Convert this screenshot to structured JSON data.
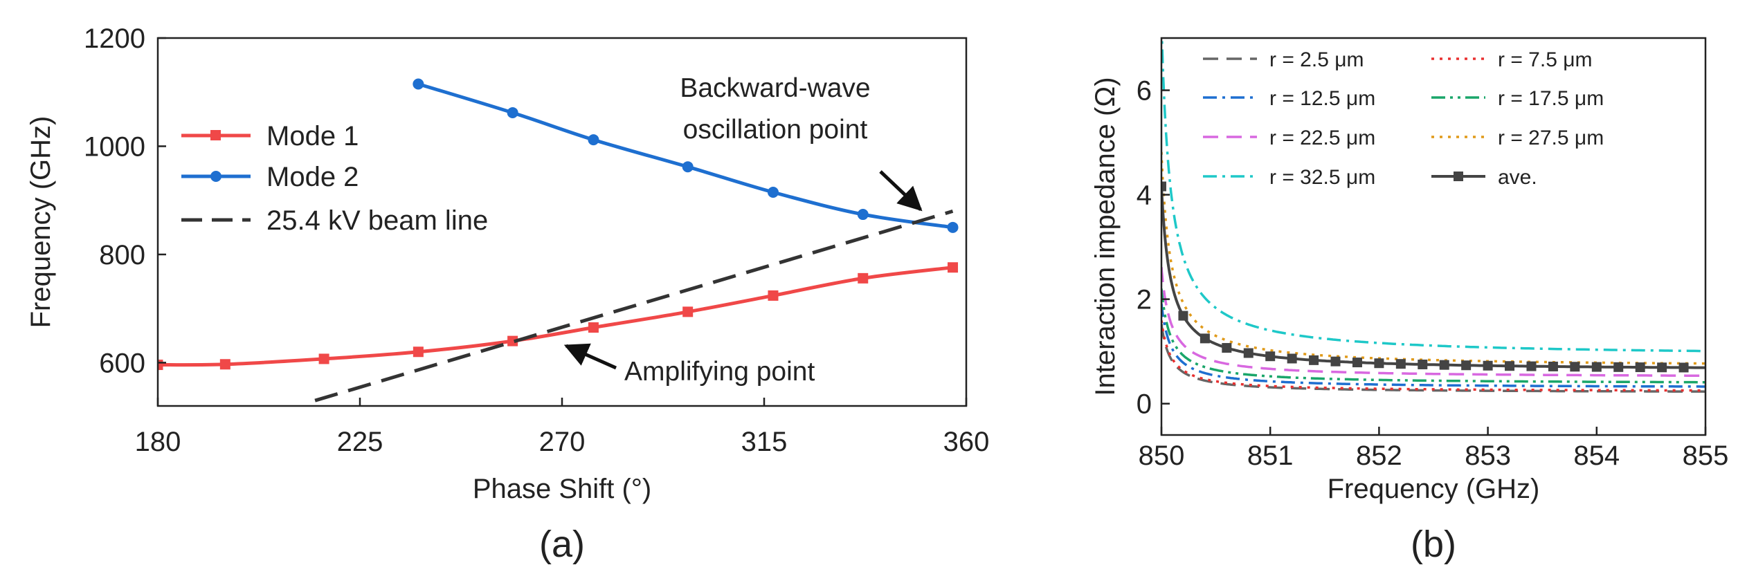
{
  "chart_data": [
    {
      "type": "line",
      "panel_label": "(a)",
      "xlabel": "Phase Shift (°)",
      "ylabel": "Frequency (GHz)",
      "xlim": [
        180,
        360
      ],
      "ylim": [
        520,
        1200
      ],
      "xticks": [
        180,
        225,
        270,
        315,
        360
      ],
      "yticks": [
        600,
        800,
        1000,
        1200
      ],
      "grid": false,
      "legend_position": "upper-left",
      "series": [
        {
          "name": "Mode 1",
          "color": "#f04848",
          "marker": "square",
          "x": [
            180,
            195,
            217,
            238,
            259,
            277,
            298,
            317,
            337,
            357
          ],
          "y": [
            596,
            597,
            607,
            620,
            640,
            665,
            694,
            724,
            756,
            776
          ]
        },
        {
          "name": "Mode 2",
          "color": "#1e6fd0",
          "marker": "circle",
          "x": [
            238,
            259,
            277,
            298,
            317,
            337,
            357
          ],
          "y": [
            1115,
            1062,
            1012,
            962,
            915,
            874,
            850
          ]
        },
        {
          "name": "25.4 kV beam line",
          "color": "#333333",
          "dash": "dashed",
          "x": [
            215,
            357
          ],
          "y": [
            530,
            880
          ]
        }
      ],
      "annotations": [
        {
          "text_lines": [
            "Backward-wave",
            "oscillation point"
          ],
          "arrow_to": [
            350,
            860
          ]
        },
        {
          "text": "Amplifying point",
          "arrow_to": [
            268,
            648
          ]
        }
      ]
    },
    {
      "type": "line",
      "panel_label": "(b)",
      "xlabel": "Frequency (GHz)",
      "ylabel": "Interaction impedance (Ω)",
      "xlim": [
        850,
        855
      ],
      "ylim": [
        -0.6,
        7
      ],
      "xticks": [
        850,
        851,
        852,
        853,
        854,
        855
      ],
      "yticks": [
        0,
        2,
        4,
        6
      ],
      "grid": false,
      "legend_position": "upper-right",
      "curve_model": "y = a + b / (x - 850 + 0.085)",
      "series": [
        {
          "name": "r = 2.5 μm",
          "color": "#666666",
          "dash": "dashed",
          "a": 0.21,
          "b": 0.112,
          "y_at_855": 0.25
        },
        {
          "name": "r = 7.5 μm",
          "color": "#e83030",
          "dash": "dotted",
          "a": 0.23,
          "b": 0.116,
          "y_at_855": 0.28
        },
        {
          "name": "r = 12.5 μm",
          "color": "#1e6fd0",
          "dash": "dash-dot",
          "a": 0.3,
          "b": 0.138,
          "y_at_855": 0.35
        },
        {
          "name": "r = 17.5 μm",
          "color": "#1aa66a",
          "dash": "dash-dot-dot",
          "a": 0.38,
          "b": 0.155,
          "y_at_855": 0.42
        },
        {
          "name": "r = 22.5 μm",
          "color": "#d868e0",
          "dash": "dashed",
          "a": 0.5,
          "b": 0.18,
          "y_at_855": 0.55
        },
        {
          "name": "r = 27.5 μm",
          "color": "#e09a1a",
          "dash": "dotted",
          "a": 0.7,
          "b": 0.35,
          "y_at_855": 0.82
        },
        {
          "name": "r = 32.5 μm",
          "color": "#1ec8c8",
          "dash": "dash-dot",
          "a": 0.9,
          "b": 0.545,
          "y_at_855": 1.15
        },
        {
          "name": "ave.",
          "color": "#444444",
          "dash": "solid",
          "marker": "square",
          "a": 0.63,
          "b": 0.3,
          "y_at_855": 0.74
        }
      ]
    }
  ]
}
